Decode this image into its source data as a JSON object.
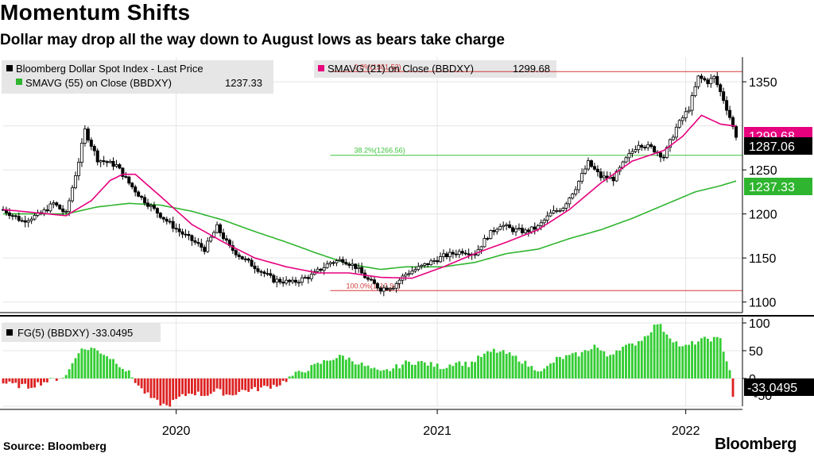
{
  "header": {
    "title": "Momentum Shifts",
    "subtitle": "Dollar may drop all the way down to August lows as bears take charge"
  },
  "footer": {
    "source": "Source: Bloomberg",
    "brand": "Bloomberg"
  },
  "colors": {
    "price": "#000000",
    "sma21": "#e6007e",
    "sma55": "#2fb52f",
    "fib": "#d23a3a",
    "fib_green": "#3cc43c",
    "hist_pos": "#33cc33",
    "hist_neg": "#dd2222"
  },
  "chart_data": [
    {
      "type": "candlestick",
      "title": "Bloomberg Dollar Spot Index",
      "ylim": [
        1088,
        1378
      ],
      "yticks": [
        1100,
        1150,
        1200,
        1250,
        1350
      ],
      "xtick_labels": [
        "2020",
        "2021",
        "2022"
      ],
      "legend": {
        "price": "Bloomberg Dollar Spot Index - Last Price",
        "sma21": "SMAVG (21)  on Close (BBDXY)",
        "sma21_value": "1299.68",
        "sma55": "SMAVG (55)  on Close (BBDXY)",
        "sma55_value": "1237.33"
      },
      "value_labels": {
        "last": "1287.06",
        "sma21": "1299.68",
        "sma55": "1237.33"
      },
      "fib_levels": [
        {
          "label": "0.0%(1361.52)",
          "value": 1361.52
        },
        {
          "label": "38.2%(1266.56)",
          "value": 1266.56
        },
        {
          "label": "100.0%(1112.94)",
          "value": 1112.94
        }
      ],
      "price_keypoints": [
        [
          0,
          1205
        ],
        [
          6,
          1192
        ],
        [
          12,
          1200
        ],
        [
          16,
          1212
        ],
        [
          20,
          1200
        ],
        [
          24,
          1260
        ],
        [
          26,
          1295
        ],
        [
          30,
          1262
        ],
        [
          36,
          1255
        ],
        [
          40,
          1235
        ],
        [
          44,
          1218
        ],
        [
          48,
          1205
        ],
        [
          52,
          1192
        ],
        [
          56,
          1180
        ],
        [
          60,
          1170
        ],
        [
          64,
          1160
        ],
        [
          68,
          1185
        ],
        [
          72,
          1162
        ],
        [
          76,
          1150
        ],
        [
          80,
          1140
        ],
        [
          86,
          1125
        ],
        [
          92,
          1122
        ],
        [
          98,
          1130
        ],
        [
          104,
          1145
        ],
        [
          108,
          1148
        ],
        [
          112,
          1140
        ],
        [
          116,
          1125
        ],
        [
          120,
          1115
        ],
        [
          124,
          1118
        ],
        [
          128,
          1132
        ],
        [
          134,
          1142
        ],
        [
          140,
          1152
        ],
        [
          146,
          1158
        ],
        [
          150,
          1155
        ],
        [
          154,
          1175
        ],
        [
          158,
          1188
        ],
        [
          162,
          1182
        ],
        [
          166,
          1180
        ],
        [
          170,
          1185
        ],
        [
          174,
          1200
        ],
        [
          178,
          1208
        ],
        [
          182,
          1230
        ],
        [
          186,
          1258
        ],
        [
          190,
          1242
        ],
        [
          194,
          1240
        ],
        [
          198,
          1262
        ],
        [
          202,
          1280
        ],
        [
          206,
          1275
        ],
        [
          210,
          1265
        ],
        [
          214,
          1298
        ],
        [
          218,
          1320
        ],
        [
          221,
          1355
        ],
        [
          224,
          1350
        ],
        [
          226,
          1355
        ],
        [
          229,
          1330
        ],
        [
          231,
          1310
        ],
        [
          233,
          1287
        ]
      ],
      "sma21_keypoints": [
        [
          0,
          1205
        ],
        [
          20,
          1198
        ],
        [
          28,
          1215
        ],
        [
          34,
          1238
        ],
        [
          38,
          1245
        ],
        [
          42,
          1245
        ],
        [
          50,
          1220
        ],
        [
          60,
          1188
        ],
        [
          70,
          1168
        ],
        [
          80,
          1150
        ],
        [
          90,
          1140
        ],
        [
          100,
          1133
        ],
        [
          110,
          1133
        ],
        [
          120,
          1128
        ],
        [
          130,
          1127
        ],
        [
          140,
          1140
        ],
        [
          150,
          1155
        ],
        [
          160,
          1168
        ],
        [
          170,
          1182
        ],
        [
          180,
          1205
        ],
        [
          190,
          1235
        ],
        [
          200,
          1260
        ],
        [
          210,
          1272
        ],
        [
          216,
          1288
        ],
        [
          222,
          1312
        ],
        [
          228,
          1302
        ],
        [
          233,
          1299.68
        ]
      ],
      "sma55_keypoints": [
        [
          0,
          1200
        ],
        [
          20,
          1200
        ],
        [
          30,
          1208
        ],
        [
          40,
          1212
        ],
        [
          50,
          1210
        ],
        [
          60,
          1203
        ],
        [
          70,
          1193
        ],
        [
          80,
          1180
        ],
        [
          90,
          1168
        ],
        [
          100,
          1155
        ],
        [
          110,
          1143
        ],
        [
          120,
          1137
        ],
        [
          128,
          1140
        ],
        [
          140,
          1140
        ],
        [
          150,
          1145
        ],
        [
          160,
          1155
        ],
        [
          170,
          1160
        ],
        [
          180,
          1172
        ],
        [
          190,
          1182
        ],
        [
          200,
          1195
        ],
        [
          210,
          1210
        ],
        [
          220,
          1225
        ],
        [
          228,
          1232
        ],
        [
          233,
          1237.33
        ]
      ]
    },
    {
      "type": "bar",
      "title": "FG(5) (BBDXY)",
      "legend": "FG(5) (BBDXY) -33.0495",
      "last_value_label": "-33.0495",
      "ylim": [
        -50,
        110
      ],
      "yticks": [
        100,
        50,
        0
      ],
      "ytick_labels": [
        "100",
        "50",
        "0"
      ],
      "bottom_tick_label": "-50",
      "keypoints": [
        [
          0,
          -8
        ],
        [
          4,
          -12
        ],
        [
          8,
          -15
        ],
        [
          12,
          -8
        ],
        [
          16,
          -2
        ],
        [
          20,
          5
        ],
        [
          24,
          50
        ],
        [
          28,
          55
        ],
        [
          32,
          45
        ],
        [
          36,
          30
        ],
        [
          40,
          10
        ],
        [
          44,
          -20
        ],
        [
          48,
          -40
        ],
        [
          52,
          -50
        ],
        [
          56,
          -35
        ],
        [
          60,
          -25
        ],
        [
          64,
          -30
        ],
        [
          68,
          -22
        ],
        [
          72,
          -30
        ],
        [
          76,
          -22
        ],
        [
          80,
          -20
        ],
        [
          84,
          -15
        ],
        [
          88,
          -10
        ],
        [
          92,
          5
        ],
        [
          96,
          15
        ],
        [
          100,
          25
        ],
        [
          104,
          35
        ],
        [
          108,
          40
        ],
        [
          112,
          30
        ],
        [
          116,
          20
        ],
        [
          120,
          10
        ],
        [
          124,
          18
        ],
        [
          128,
          28
        ],
        [
          132,
          30
        ],
        [
          136,
          25
        ],
        [
          140,
          20
        ],
        [
          144,
          30
        ],
        [
          148,
          25
        ],
        [
          152,
          40
        ],
        [
          156,
          50
        ],
        [
          160,
          45
        ],
        [
          164,
          35
        ],
        [
          168,
          20
        ],
        [
          172,
          15
        ],
        [
          176,
          35
        ],
        [
          180,
          40
        ],
        [
          184,
          45
        ],
        [
          188,
          60
        ],
        [
          192,
          40
        ],
        [
          196,
          55
        ],
        [
          200,
          60
        ],
        [
          204,
          75
        ],
        [
          208,
          100
        ],
        [
          212,
          75
        ],
        [
          216,
          55
        ],
        [
          220,
          65
        ],
        [
          224,
          72
        ],
        [
          228,
          70
        ],
        [
          231,
          15
        ],
        [
          232,
          -33.0495
        ]
      ]
    }
  ]
}
